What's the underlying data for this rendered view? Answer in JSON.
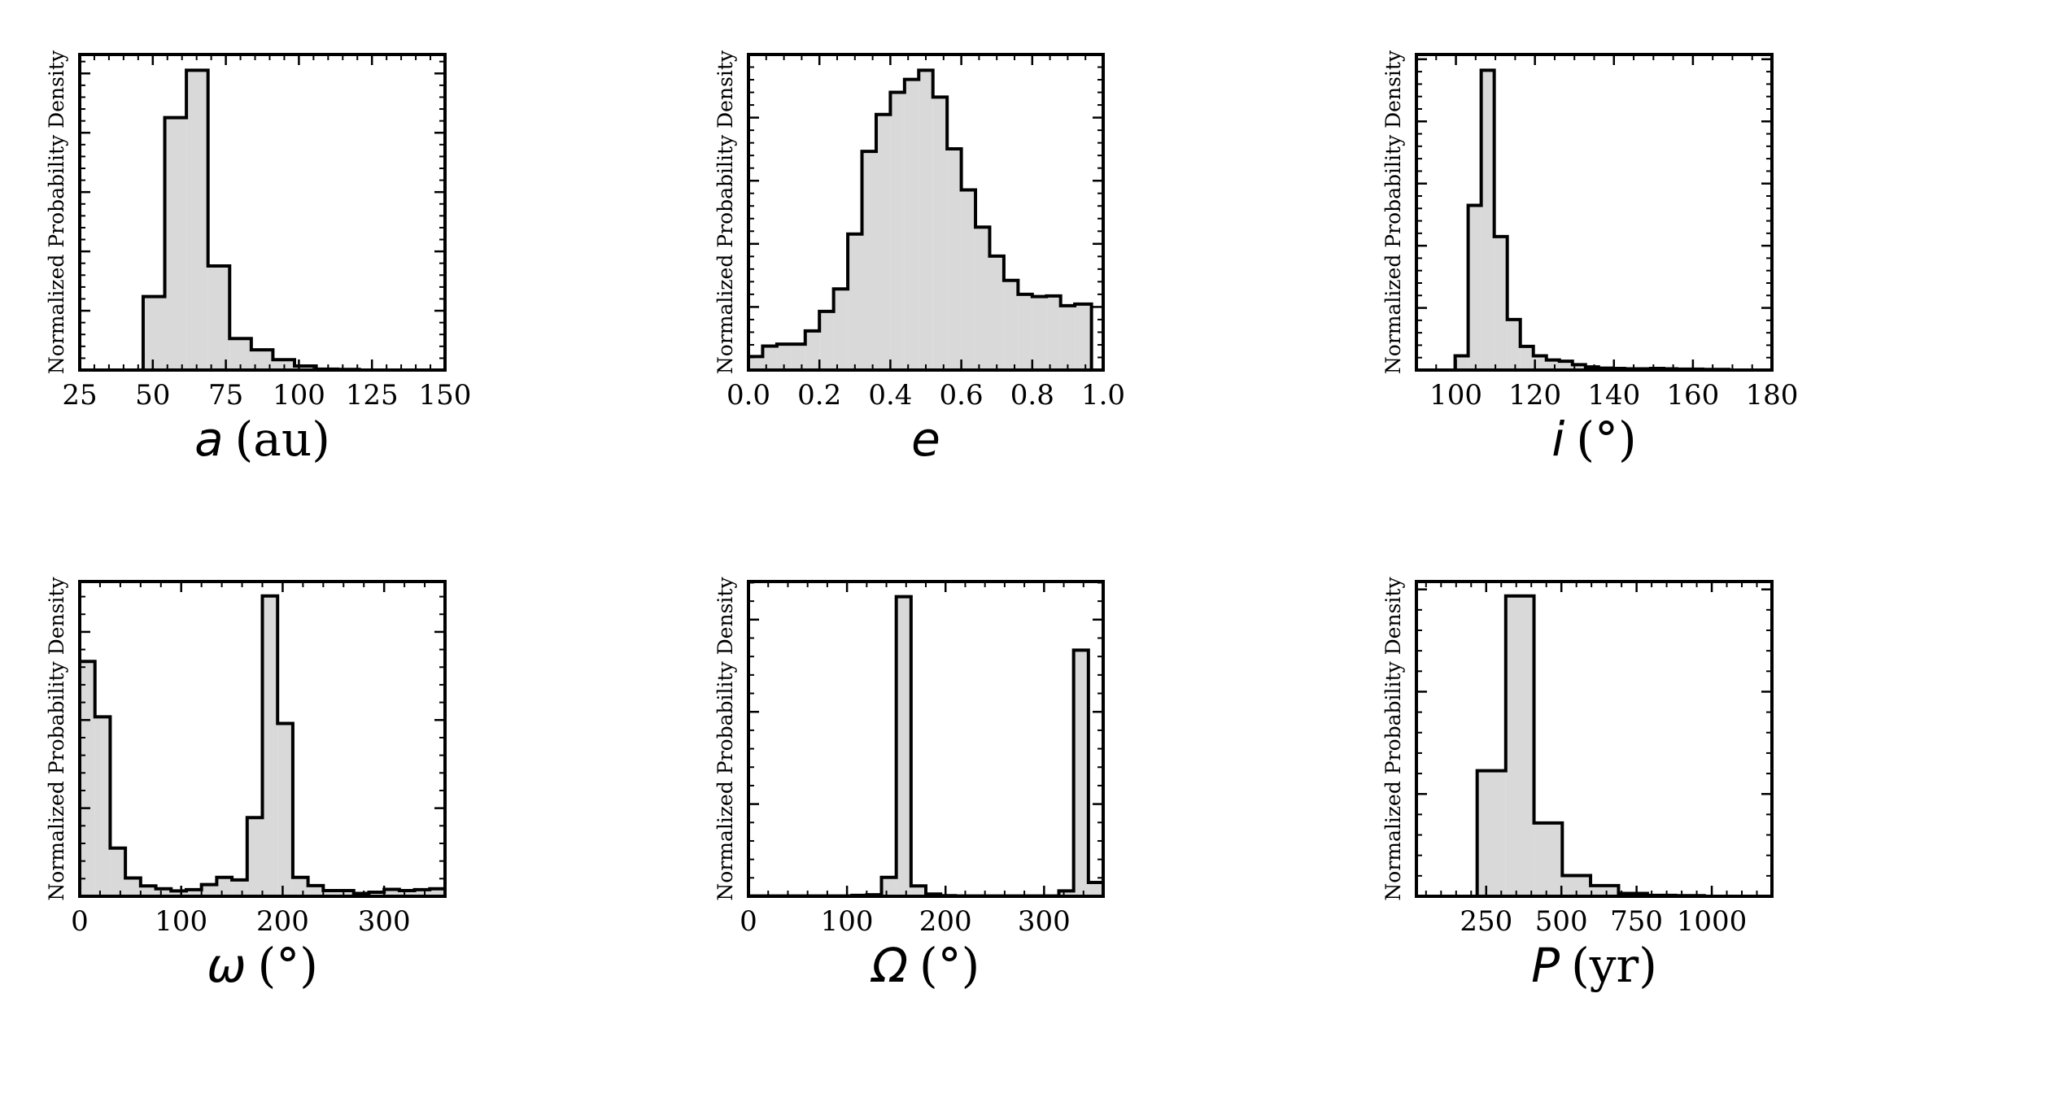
{
  "chart_data": [
    {
      "type": "bar",
      "histogram": true,
      "xlabel_symbol": "a",
      "xlabel_unit": "(au)",
      "ylabel": "Normalized Probability Density",
      "xlim": [
        25,
        150
      ],
      "ylim": [
        0,
        1
      ],
      "xticks": [
        25,
        50,
        75,
        100,
        125,
        150
      ],
      "xtick_labels": [
        "25",
        "50",
        "75",
        "100",
        "125",
        "150"
      ],
      "xminor_step": 5,
      "ytick_step": 0.188,
      "bin_edges": [
        46.7,
        54.1,
        61.5,
        68.9,
        76.3,
        83.7,
        91.1,
        98.5,
        105.9,
        113.3,
        120.7
      ],
      "values": [
        0.233,
        0.8,
        0.95,
        0.33,
        0.1,
        0.064,
        0.033,
        0.013,
        0.003,
        0.002
      ],
      "fill": "#d9d9d9",
      "edge": "#000000"
    },
    {
      "type": "bar",
      "histogram": true,
      "xlabel_symbol": "e",
      "xlabel_unit": "",
      "ylabel": "Normalized Probability Density",
      "xlim": [
        0,
        1
      ],
      "ylim": [
        0,
        1
      ],
      "xticks": [
        0,
        0.2,
        0.4,
        0.6,
        0.8,
        1.0
      ],
      "xtick_labels": [
        "0.0",
        "0.2",
        "0.4",
        "0.6",
        "0.8",
        "1.0"
      ],
      "xminor_step": 0.05,
      "ytick_step": 0.2,
      "bin_edges": [
        0,
        0.04,
        0.08,
        0.12,
        0.16,
        0.2,
        0.24,
        0.28,
        0.32,
        0.36,
        0.4,
        0.44,
        0.48,
        0.52,
        0.56,
        0.6,
        0.64,
        0.68,
        0.72,
        0.76,
        0.8,
        0.84,
        0.88,
        0.92,
        0.967
      ],
      "values": [
        0.043,
        0.076,
        0.082,
        0.082,
        0.124,
        0.186,
        0.257,
        0.431,
        0.693,
        0.81,
        0.88,
        0.921,
        0.95,
        0.865,
        0.701,
        0.571,
        0.453,
        0.361,
        0.284,
        0.24,
        0.233,
        0.235,
        0.204,
        0.209
      ],
      "fill": "#d9d9d9",
      "edge": "#000000"
    },
    {
      "type": "bar",
      "histogram": true,
      "xlabel_symbol": "i",
      "xlabel_unit": "(°)",
      "ylabel": "Normalized Probability Density",
      "xlim": [
        90,
        180
      ],
      "ylim": [
        0,
        1
      ],
      "xticks": [
        100,
        120,
        140,
        160,
        180
      ],
      "xtick_labels": [
        "100",
        "120",
        "140",
        "160",
        "180"
      ],
      "xminor_step": 5,
      "ytick_step": 0.197,
      "bin_edges": [
        99.8,
        103.1,
        106.4,
        109.7,
        113,
        116.3,
        119.6,
        122.9,
        126.2,
        129.5,
        132.8,
        136.1,
        139.4,
        142.7,
        146,
        149.3,
        152.6,
        155.9,
        159.2,
        162.5,
        165.8,
        169.1
      ],
      "values": [
        0.045,
        0.522,
        0.95,
        0.423,
        0.16,
        0.075,
        0.045,
        0.032,
        0.028,
        0.017,
        0.01,
        0.006,
        0.005,
        0.004,
        0.004,
        0.005,
        0.004,
        0.003,
        0.003,
        0.002,
        0.002
      ],
      "fill": "#d9d9d9",
      "edge": "#000000"
    },
    {
      "type": "bar",
      "histogram": true,
      "xlabel_symbol": "ω",
      "xlabel_unit": "(°)",
      "ylabel": "Normalized Probability Density",
      "xlim": [
        0,
        360
      ],
      "ylim": [
        0,
        1
      ],
      "xticks": [
        0,
        100,
        200,
        300
      ],
      "xtick_labels": [
        "0",
        "100",
        "200",
        "300"
      ],
      "xminor_step": 20,
      "ytick_step": 0.28,
      "bin_edges": [
        0,
        15,
        30,
        45,
        60,
        75,
        90,
        105,
        120,
        135,
        150,
        165,
        180,
        195,
        210,
        225,
        240,
        255,
        270,
        285,
        300,
        315,
        330,
        345,
        360
      ],
      "values": [
        0.746,
        0.57,
        0.153,
        0.058,
        0.033,
        0.024,
        0.017,
        0.021,
        0.037,
        0.06,
        0.052,
        0.25,
        0.954,
        0.549,
        0.06,
        0.034,
        0.018,
        0.018,
        0.009,
        0.013,
        0.022,
        0.018,
        0.021,
        0.024
      ],
      "fill": "#d9d9d9",
      "edge": "#000000"
    },
    {
      "type": "bar",
      "histogram": true,
      "xlabel_symbol": "Ω",
      "xlabel_unit": "(°)",
      "ylabel": "Normalized Probability Density",
      "xlim": [
        0,
        360
      ],
      "ylim": [
        0,
        1
      ],
      "xticks": [
        0,
        100,
        200,
        300
      ],
      "xtick_labels": [
        "0",
        "100",
        "200",
        "300"
      ],
      "xminor_step": 20,
      "ytick_step": 0.293,
      "bin_edges": [
        0,
        15,
        30,
        45,
        60,
        75,
        90,
        105,
        120,
        135,
        150,
        165,
        180,
        195,
        210,
        225,
        240,
        255,
        270,
        285,
        300,
        315,
        330,
        345,
        360
      ],
      "values": [
        0.001,
        0.001,
        0.001,
        0.001,
        0.001,
        0.001,
        0.001,
        0.003,
        0.005,
        0.06,
        0.952,
        0.033,
        0.007,
        0.002,
        0.001,
        0.001,
        0.001,
        0.001,
        0.001,
        0.001,
        0.001,
        0.017,
        0.782,
        0.044
      ],
      "fill": "#d9d9d9",
      "edge": "#000000"
    },
    {
      "type": "bar",
      "histogram": true,
      "xlabel_symbol": "P",
      "xlabel_unit": "(yr)",
      "ylabel": "Normalized Probability Density",
      "xlim": [
        18,
        1200
      ],
      "ylim": [
        0,
        1
      ],
      "xticks": [
        250,
        500,
        750,
        1000
      ],
      "xtick_labels": [
        "250",
        "500",
        "750",
        "1000"
      ],
      "xminor_step": 50,
      "ytick_step": 0.325,
      "bin_edges": [
        220,
        315,
        409,
        503,
        597,
        690,
        786,
        880,
        975
      ],
      "values": [
        0.399,
        0.954,
        0.233,
        0.066,
        0.034,
        0.009,
        0.003,
        0.002
      ],
      "fill": "#d9d9d9",
      "edge": "#000000"
    }
  ]
}
